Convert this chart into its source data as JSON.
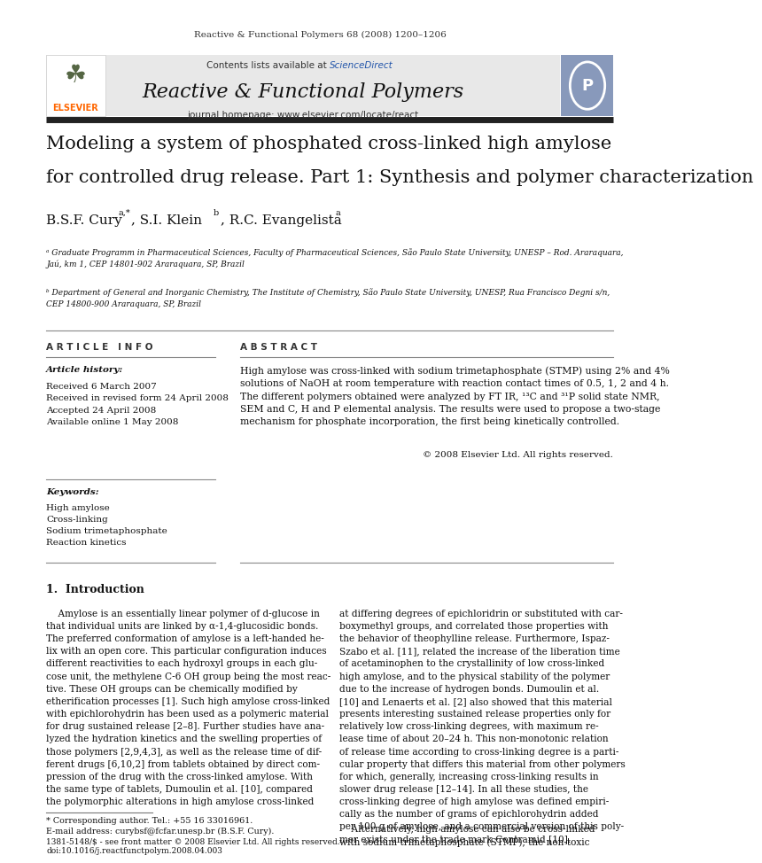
{
  "bg_color": "#ffffff",
  "page_width": 9.07,
  "page_height": 12.38,
  "journal_ref": "Reactive & Functional Polymers 68 (2008) 1200–1206",
  "header_bg": "#e8e8e8",
  "header_text1": "Contents lists available at ",
  "header_sciencedirect": "ScienceDirect",
  "header_sciencedirect_color": "#2255aa",
  "journal_name": "Reactive & Functional Polymers",
  "journal_url": "journal homepage: www.elsevier.com/locate/react",
  "thick_bar_color": "#222222",
  "paper_title_line1": "Modeling a system of phosphated cross-linked high amylose",
  "paper_title_line2": "for controlled drug release. Part 1: Synthesis and polymer characterization",
  "affil_a": "ᵃ Graduate Programm in Pharmaceutical Sciences, Faculty of Pharmaceutical Sciences, São Paulo State University, UNESP – Rod. Araraquara,\nJaú, km 1, CEP 14801-902 Araraquara, SP, Brazil",
  "affil_b": "ᵇ Department of General and Inorganic Chemistry, The Institute of Chemistry, São Paulo State University, UNESP, Rua Francisco Degni s/n,\nCEP 14800-900 Araraquara, SP, Brazil",
  "section_article_info": "A R T I C L E   I N F O",
  "section_abstract": "A B S T R A C T",
  "article_history_title": "Article history:",
  "article_history": "Received 6 March 2007\nReceived in revised form 24 April 2008\nAccepted 24 April 2008\nAvailable online 1 May 2008",
  "keywords_title": "Keywords:",
  "keywords": "High amylose\nCross-linking\nSodium trimetaphosphate\nReaction kinetics",
  "abstract_text": "High amylose was cross-linked with sodium trimetaphosphate (STMP) using 2% and 4%\nsolutions of NaOH at room temperature with reaction contact times of 0.5, 1, 2 and 4 h.\nThe different polymers obtained were analyzed by FT IR, ¹³C and ³¹P solid state NMR,\nSEM and C, H and P elemental analysis. The results were used to propose a two-stage\nmechanism for phosphate incorporation, the first being kinetically controlled.",
  "copyright": "© 2008 Elsevier Ltd. All rights reserved.",
  "intro_heading": "1.  Introduction",
  "intro_col1": "    Amylose is an essentially linear polymer of d-glucose in\nthat individual units are linked by α-1,4-glucosidic bonds.\nThe preferred conformation of amylose is a left-handed he-\nlix with an open core. This particular configuration induces\ndifferent reactivities to each hydroxyl groups in each glu-\ncose unit, the methylene C-6 OH group being the most reac-\ntive. These OH groups can be chemically modified by\netherification processes [1]. Such high amylose cross-linked\nwith epichlorohydrin has been used as a polymeric material\nfor drug sustained release [2–8]. Further studies have ana-\nlyzed the hydration kinetics and the swelling properties of\nthose polymers [2,9,4,3], as well as the release time of dif-\nferent drugs [6,10,2] from tablets obtained by direct com-\npression of the drug with the cross-linked amylose. With\nthe same type of tablets, Dumoulin et al. [10], compared\nthe polymorphic alterations in high amylose cross-linked",
  "intro_col2": "at differing degrees of epichloridrin or substituted with car-\nboxymethyl groups, and correlated those properties with\nthe behavior of theophylline release. Furthermore, Ispaz-\nSzabo et al. [11], related the increase of the liberation time\nof acetaminophen to the crystallinity of low cross-linked\nhigh amylose, and to the physical stability of the polymer\ndue to the increase of hydrogen bonds. Dumoulin et al.\n[10] and Lenaerts et al. [2] also showed that this material\npresents interesting sustained release properties only for\nrelatively low cross-linking degrees, with maximum re-\nlease time of about 20–24 h. This non-monotonic relation\nof release time according to cross-linking degree is a parti-\ncular property that differs this material from other polymers\nfor which, generally, increasing cross-linking results in\nslower drug release [12–14]. In all these studies, the\ncross-linking degree of high amylose was defined empiri-\ncally as the number of grams of epichlorohydrin added\nper 100 g of amylose, and a commercial version of this poly-\nmer exists under the trade mark Contramid [10].",
  "col2_para2": "    Alternatively, high amylose can also be cross-linked\nwith sodium trimetaphosphate (STMP), the non-toxic",
  "footnote_star": "* Corresponding author. Tel.: +55 16 33016961.",
  "footnote_email": "E-mail address: curybsf@fcfar.unesp.br (B.S.F. Cury).",
  "footnote_issn": "1381-5148/$ - see front matter © 2008 Elsevier Ltd. All rights reserved.",
  "footnote_doi": "doi:10.1016/j.reactfunctpolym.2008.04.003"
}
